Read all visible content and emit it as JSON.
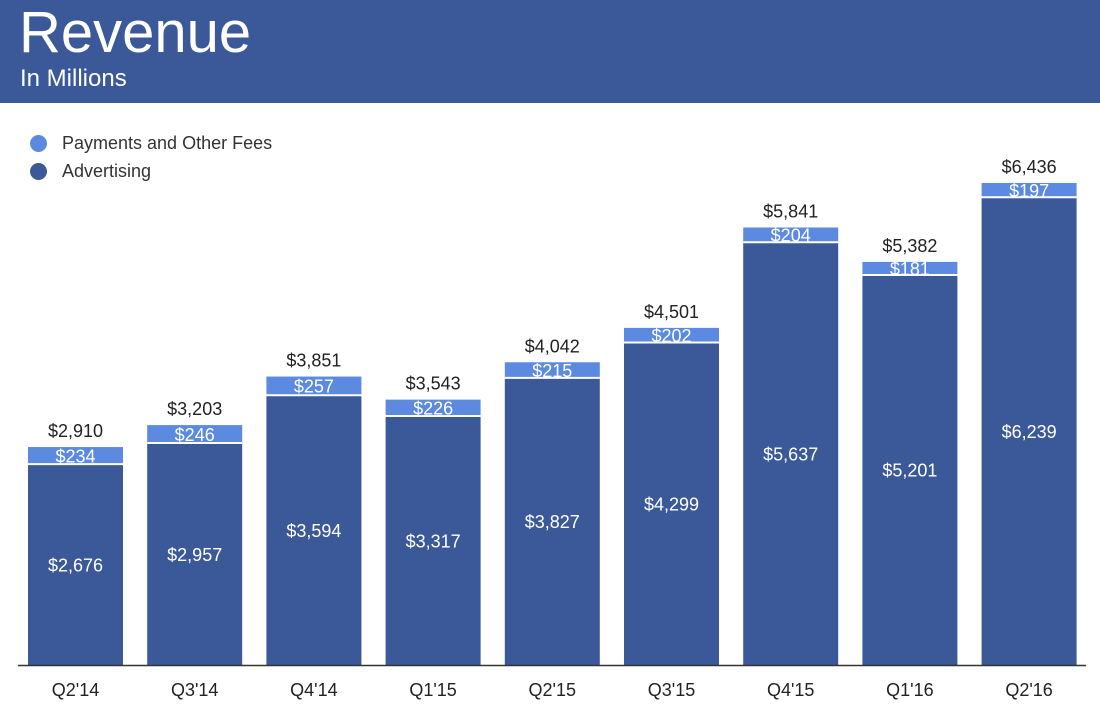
{
  "header": {
    "title": "Revenue",
    "subtitle": "In Millions"
  },
  "legend": [
    {
      "label": "Payments and Other Fees",
      "color": "#5b8ae0"
    },
    {
      "label": "Advertising",
      "color": "#3b5998"
    }
  ],
  "colors": {
    "header_bg": "#3b5998",
    "advertising": "#3b5998",
    "payments": "#5b8ae0"
  },
  "chart_data": {
    "type": "bar",
    "stacked": true,
    "title": "Revenue",
    "subtitle": "In Millions",
    "categories": [
      "Q2'14",
      "Q3'14",
      "Q4'14",
      "Q1'15",
      "Q2'15",
      "Q3'15",
      "Q4'15",
      "Q1'16",
      "Q2'16"
    ],
    "series": [
      {
        "name": "Advertising",
        "values": [
          2676,
          2957,
          3594,
          3317,
          3827,
          4299,
          5637,
          5201,
          6239
        ],
        "labels": [
          "$2,676",
          "$2,957",
          "$3,594",
          "$3,317",
          "$3,827",
          "$4,299",
          "$5,637",
          "$5,201",
          "$6,239"
        ]
      },
      {
        "name": "Payments and Other Fees",
        "values": [
          234,
          246,
          257,
          226,
          215,
          202,
          204,
          181,
          197
        ],
        "labels": [
          "$234",
          "$246",
          "$257",
          "$226",
          "$215",
          "$202",
          "$204",
          "$181",
          "$197"
        ]
      }
    ],
    "totals": [
      2910,
      3203,
      3851,
      3543,
      4042,
      4501,
      5841,
      5382,
      6436
    ],
    "total_labels": [
      "$2,910",
      "$3,203",
      "$3,851",
      "$3,543",
      "$4,042",
      "$4,501",
      "$5,841",
      "$5,382",
      "$6,436"
    ],
    "ylim": [
      0,
      7000
    ],
    "grid": false,
    "legend_position": "top-left"
  }
}
